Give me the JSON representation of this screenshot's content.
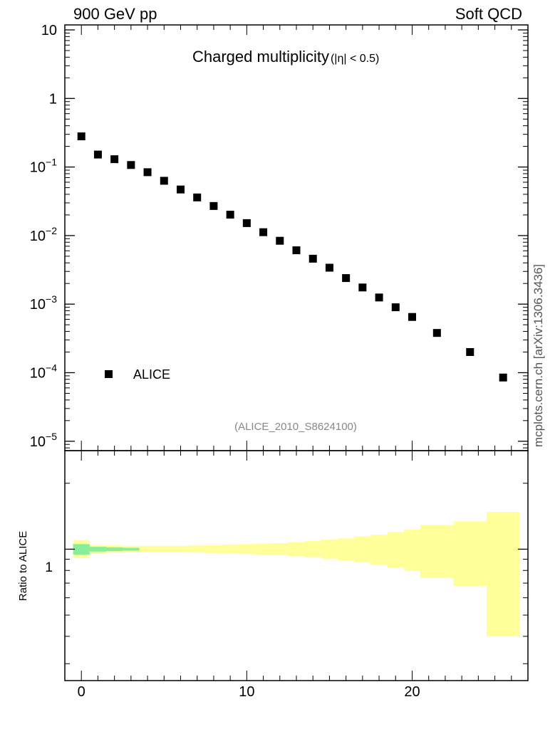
{
  "header": {
    "left": "900 GeV pp",
    "right": "Soft QCD"
  },
  "side_note": "mcplots.cern.ch [arXiv:1306.3436]",
  "main_plot": {
    "title_main": "Charged multiplicity",
    "title_cut": "(|η| < 0.5)",
    "legend": "ALICE",
    "analysis_id": "(ALICE_2010_S8624100)",
    "y_ticks": [
      {
        "exp": 1,
        "label": "10"
      },
      {
        "exp": 0,
        "label": "1"
      },
      {
        "exp": -1,
        "base": "10",
        "sup": "−1"
      },
      {
        "exp": -2,
        "base": "10",
        "sup": "−2"
      },
      {
        "exp": -3,
        "base": "10",
        "sup": "−3"
      },
      {
        "exp": -4,
        "base": "10",
        "sup": "−4"
      },
      {
        "exp": -5,
        "base": "10",
        "sup": "−5"
      }
    ]
  },
  "ratio_plot": {
    "ylabel": "Ratio to ALICE",
    "y_tick_label": "1",
    "x_tick_labels": [
      "0",
      "10",
      "20"
    ]
  },
  "chart_data": {
    "type": "scatter",
    "xlim": [
      -1,
      27
    ],
    "ylim": [
      1e-05,
      12
    ],
    "y_scale": "log",
    "series": [
      {
        "name": "ALICE",
        "color": "#000000",
        "x": [
          0,
          1,
          2,
          3,
          4,
          5,
          6,
          7,
          8,
          9,
          10,
          11,
          12,
          13,
          14,
          15,
          16,
          17,
          18,
          19,
          20,
          21.5,
          23.5,
          25.5
        ],
        "y": [
          0.28,
          0.152,
          0.13,
          0.107,
          0.084,
          0.063,
          0.047,
          0.036,
          0.027,
          0.0202,
          0.0152,
          0.0112,
          0.0084,
          0.0061,
          0.0046,
          0.0034,
          0.0024,
          0.00175,
          0.00125,
          0.0009,
          0.00065,
          0.00038,
          0.0002,
          8.5e-05
        ]
      }
    ],
    "ratio": {
      "ylim_log": [
        -0.6,
        0.45
      ],
      "reference": 1,
      "yellow_band": [
        {
          "x0": -0.5,
          "x1": 0.5,
          "lo": 0.91,
          "hi": 1.1
        },
        {
          "x0": 0.5,
          "x1": 1.5,
          "lo": 0.955,
          "hi": 1.045
        },
        {
          "x0": 1.5,
          "x1": 2.5,
          "lo": 0.965,
          "hi": 1.04
        },
        {
          "x0": 2.5,
          "x1": 3.5,
          "lo": 0.97,
          "hi": 1.035
        },
        {
          "x0": 3.5,
          "x1": 4.5,
          "lo": 0.97,
          "hi": 1.035
        },
        {
          "x0": 4.5,
          "x1": 5.5,
          "lo": 0.97,
          "hi": 1.035
        },
        {
          "x0": 5.5,
          "x1": 6.5,
          "lo": 0.97,
          "hi": 1.035
        },
        {
          "x0": 6.5,
          "x1": 7.5,
          "lo": 0.965,
          "hi": 1.04
        },
        {
          "x0": 7.5,
          "x1": 8.5,
          "lo": 0.96,
          "hi": 1.045
        },
        {
          "x0": 8.5,
          "x1": 9.5,
          "lo": 0.955,
          "hi": 1.05
        },
        {
          "x0": 9.5,
          "x1": 10.5,
          "lo": 0.95,
          "hi": 1.055
        },
        {
          "x0": 10.5,
          "x1": 11.5,
          "lo": 0.945,
          "hi": 1.06
        },
        {
          "x0": 11.5,
          "x1": 12.5,
          "lo": 0.94,
          "hi": 1.065
        },
        {
          "x0": 12.5,
          "x1": 13.5,
          "lo": 0.93,
          "hi": 1.075
        },
        {
          "x0": 13.5,
          "x1": 14.5,
          "lo": 0.92,
          "hi": 1.09
        },
        {
          "x0": 14.5,
          "x1": 15.5,
          "lo": 0.905,
          "hi": 1.105
        },
        {
          "x0": 15.5,
          "x1": 16.5,
          "lo": 0.89,
          "hi": 1.12
        },
        {
          "x0": 16.5,
          "x1": 17.5,
          "lo": 0.87,
          "hi": 1.145
        },
        {
          "x0": 17.5,
          "x1": 18.5,
          "lo": 0.85,
          "hi": 1.165
        },
        {
          "x0": 18.5,
          "x1": 19.5,
          "lo": 0.825,
          "hi": 1.2
        },
        {
          "x0": 19.5,
          "x1": 20.5,
          "lo": 0.8,
          "hi": 1.23
        },
        {
          "x0": 20.5,
          "x1": 22.5,
          "lo": 0.74,
          "hi": 1.29
        },
        {
          "x0": 22.5,
          "x1": 24.5,
          "lo": 0.68,
          "hi": 1.34
        },
        {
          "x0": 24.5,
          "x1": 26.5,
          "lo": 0.4,
          "hi": 1.48
        }
      ],
      "green_band": [
        {
          "x0": -0.5,
          "x1": 0.5,
          "lo": 0.945,
          "hi": 1.055
        },
        {
          "x0": 0.5,
          "x1": 1.5,
          "lo": 0.975,
          "hi": 1.025
        },
        {
          "x0": 1.5,
          "x1": 2.5,
          "lo": 0.98,
          "hi": 1.02
        },
        {
          "x0": 2.5,
          "x1": 3.5,
          "lo": 0.985,
          "hi": 1.015
        }
      ]
    }
  }
}
